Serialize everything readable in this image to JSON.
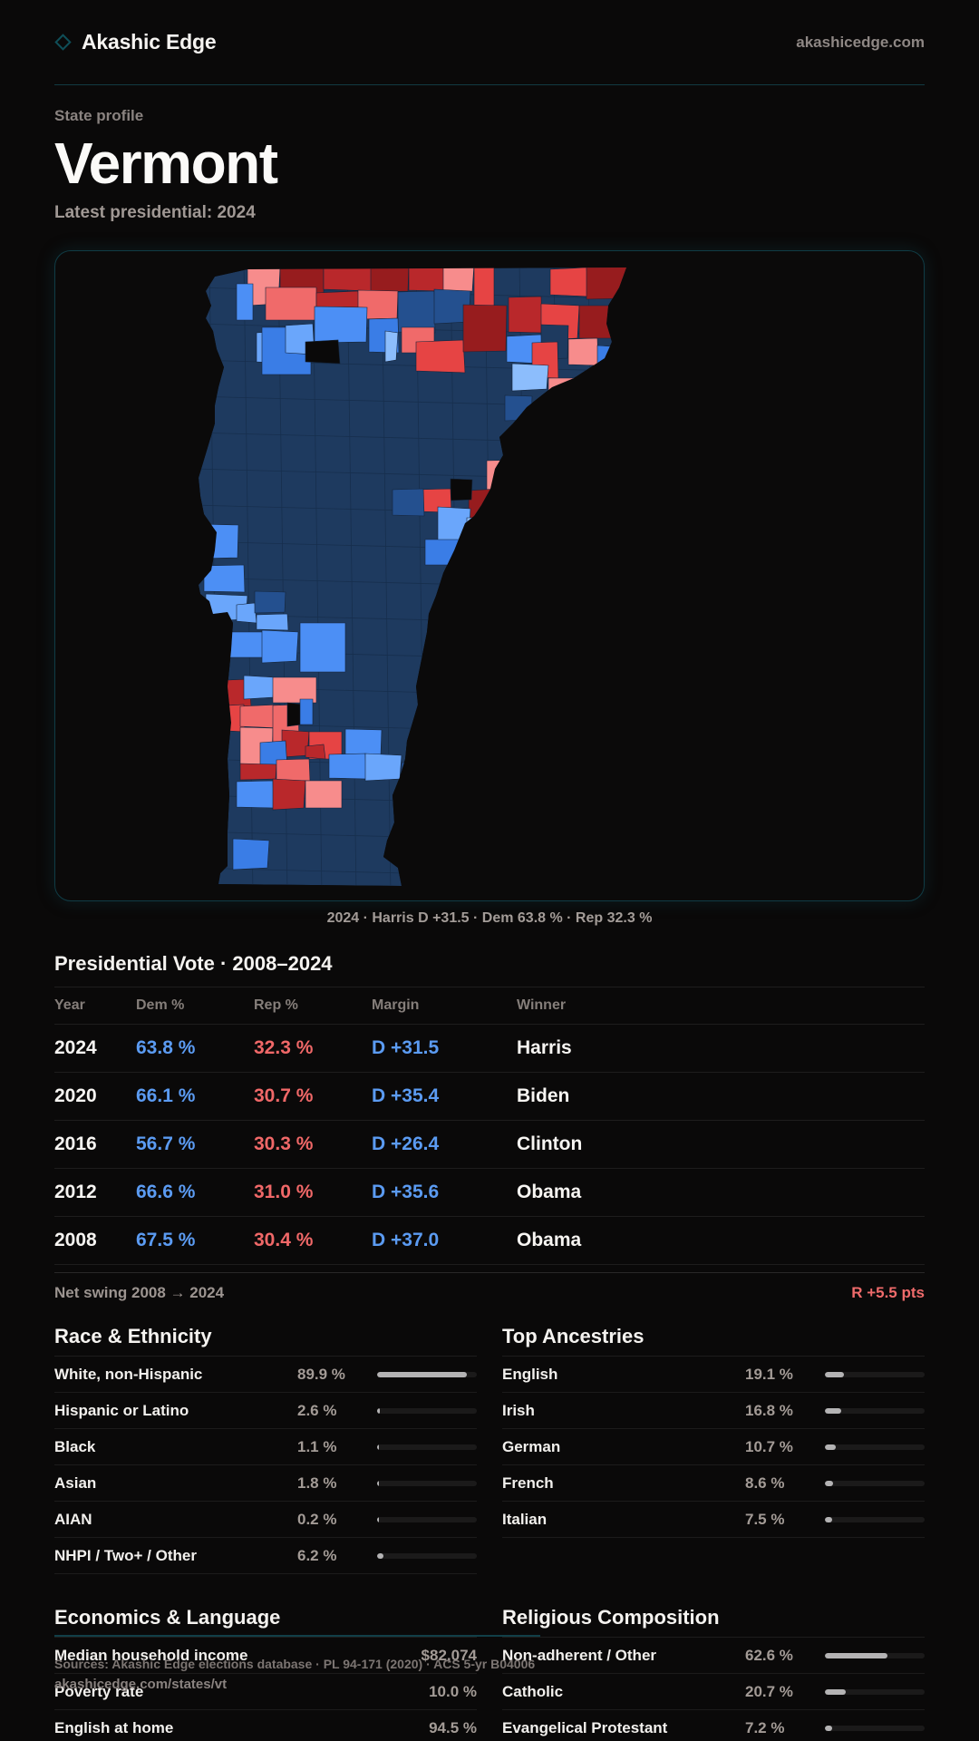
{
  "brand": {
    "name": "Akashic Edge",
    "icon": "diamond-outline-icon",
    "site": "akashicedge.com"
  },
  "header": {
    "eyebrow": "State profile",
    "title": "Vermont",
    "subtitle": "Latest presidential: 2024"
  },
  "map": {
    "caption": "2024 · Harris D +31.5 · Dem 63.8 % · Rep 32.3 %",
    "legend_colors": {
      "dem_dark": "#1e3a5f",
      "dem_mid": "#24508f",
      "dem_blue": "#3a7de6",
      "dem_bright": "#4c8ff5",
      "dem_light": "#6aa6fb",
      "dem_pale": "#8cbdfc",
      "rep_dark": "#971c1e",
      "rep_mid": "#b9282b",
      "rep_red": "#e64444",
      "rep_salmon": "#f06a6a",
      "rep_pink": "#f78c8c",
      "tie": "#e6e6ea",
      "no_data": "#0a0909"
    }
  },
  "presidential": {
    "title": "Presidential Vote · 2008–2024",
    "columns": [
      "Year",
      "Dem %",
      "Rep %",
      "Margin",
      "Winner"
    ],
    "rows": [
      {
        "year": "2024",
        "dem": "63.8 %",
        "rep": "32.3 %",
        "margin": "D +31.5",
        "winner": "Harris"
      },
      {
        "year": "2020",
        "dem": "66.1 %",
        "rep": "30.7 %",
        "margin": "D +35.4",
        "winner": "Biden"
      },
      {
        "year": "2016",
        "dem": "56.7 %",
        "rep": "30.3 %",
        "margin": "D +26.4",
        "winner": "Clinton"
      },
      {
        "year": "2012",
        "dem": "66.6 %",
        "rep": "31.0 %",
        "margin": "D +35.6",
        "winner": "Obama"
      },
      {
        "year": "2008",
        "dem": "67.5 %",
        "rep": "30.4 %",
        "margin": "D +37.0",
        "winner": "Obama"
      }
    ],
    "swing_label": "Net swing 2008 → 2024",
    "swing_value": "R +5.5 pts"
  },
  "race": {
    "title": "Race & Ethnicity",
    "rows": [
      {
        "label": "White, non-Hispanic",
        "value": "89.9 %",
        "pct": 89.9
      },
      {
        "label": "Hispanic or Latino",
        "value": "2.6 %",
        "pct": 2.6
      },
      {
        "label": "Black",
        "value": "1.1 %",
        "pct": 1.1
      },
      {
        "label": "Asian",
        "value": "1.8 %",
        "pct": 1.8
      },
      {
        "label": "AIAN",
        "value": "0.2 %",
        "pct": 0.2
      },
      {
        "label": "NHPI / Two+ / Other",
        "value": "6.2 %",
        "pct": 6.2
      }
    ]
  },
  "ancestry": {
    "title": "Top Ancestries",
    "rows": [
      {
        "label": "English",
        "value": "19.1 %",
        "pct": 19.1
      },
      {
        "label": "Irish",
        "value": "16.8 %",
        "pct": 16.8
      },
      {
        "label": "German",
        "value": "10.7 %",
        "pct": 10.7
      },
      {
        "label": "French",
        "value": "8.6 %",
        "pct": 8.6
      },
      {
        "label": "Italian",
        "value": "7.5 %",
        "pct": 7.5
      }
    ]
  },
  "economics": {
    "title": "Economics & Language",
    "rows": [
      {
        "label": "Median household income",
        "value": "$82,074"
      },
      {
        "label": "Poverty rate",
        "value": "10.0 %"
      },
      {
        "label": "English at home",
        "value": "94.5 %"
      }
    ]
  },
  "religion": {
    "title": "Religious Composition",
    "rows": [
      {
        "label": "Non-adherent / Other",
        "value": "62.6 %",
        "pct": 62.6
      },
      {
        "label": "Catholic",
        "value": "20.7 %",
        "pct": 20.7
      },
      {
        "label": "Evangelical Protestant",
        "value": "7.2 %",
        "pct": 7.2
      }
    ]
  },
  "footer": {
    "source": "Sources: Akashic Edge elections database · PL 94-171 (2020) · ACS 5-yr B04006",
    "link": "akashicedge.com/states/vt"
  }
}
